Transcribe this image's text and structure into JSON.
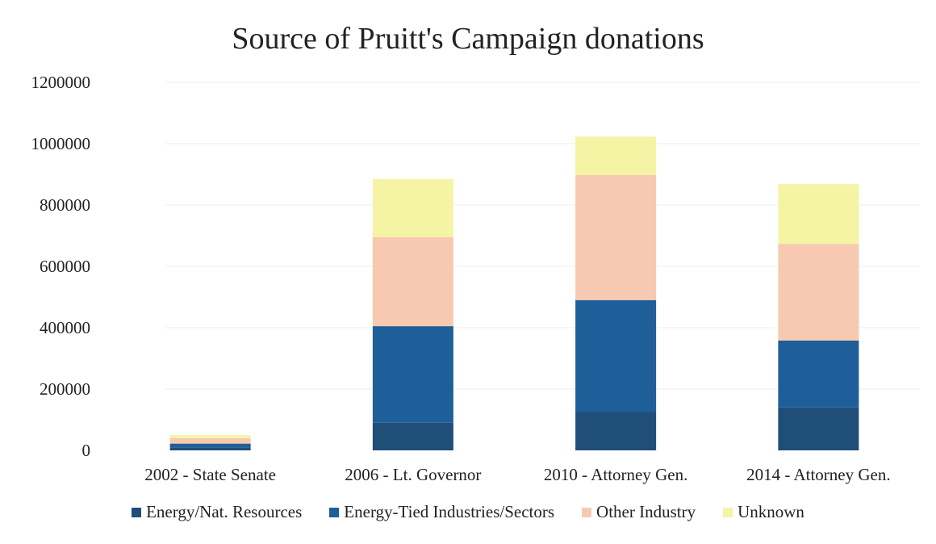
{
  "chart_data": {
    "type": "bar",
    "stacked": true,
    "title": "Source of Pruitt's Campaign donations",
    "xlabel": "",
    "ylabel": "",
    "ylim": [
      0,
      1200000
    ],
    "yticks": [
      0,
      200000,
      400000,
      600000,
      800000,
      1000000,
      1200000
    ],
    "ytick_labels": [
      "0",
      "200000",
      "400000",
      "600000",
      "800000",
      "1000000",
      "1200000"
    ],
    "grid": true,
    "legend_position": "bottom",
    "categories": [
      "2002 - State Senate",
      "2006 - Lt. Governor",
      "2010 - Attorney Gen.",
      "2014 - Attorney Gen."
    ],
    "series": [
      {
        "name": "Energy/Nat. Resources",
        "color": "#1f4e79",
        "values": [
          10000,
          90000,
          125000,
          140000
        ]
      },
      {
        "name": "Energy-Tied Industries/Sectors",
        "color": "#1f5f99",
        "values": [
          12000,
          315000,
          365000,
          218000
        ]
      },
      {
        "name": "Other Industry",
        "color": "#f7c9b0",
        "values": [
          18000,
          290000,
          408000,
          315000
        ]
      },
      {
        "name": "Unknown",
        "color": "#f4f4a4",
        "values": [
          10000,
          190000,
          125000,
          195000
        ]
      }
    ]
  }
}
